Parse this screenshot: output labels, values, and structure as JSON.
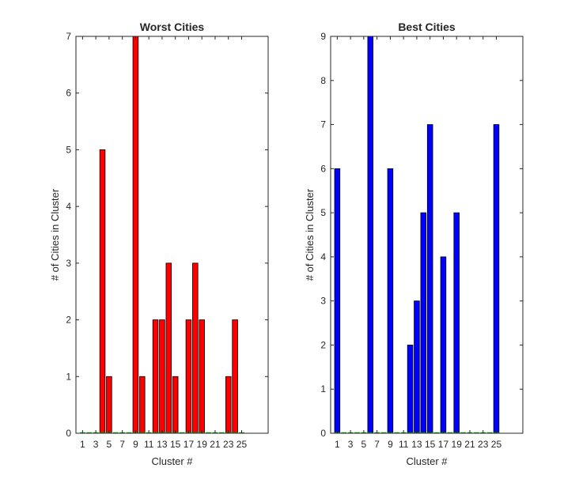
{
  "chart_data": [
    {
      "type": "bar",
      "title": "Worst Cities",
      "xlabel": "Cluster #",
      "ylabel": "# of Cities in Cluster",
      "xlim": [
        0,
        29
      ],
      "ylim": [
        0,
        7
      ],
      "x": [
        1,
        2,
        3,
        4,
        5,
        6,
        7,
        8,
        9,
        10,
        11,
        12,
        13,
        14,
        15,
        16,
        17,
        18,
        19,
        20,
        21,
        22,
        23,
        24,
        25
      ],
      "values": [
        0,
        0,
        0,
        5,
        1,
        0,
        0,
        0,
        7,
        1,
        0,
        2,
        2,
        3,
        1,
        0,
        2,
        3,
        2,
        0,
        0,
        0,
        1,
        2,
        0
      ],
      "xticks": [
        1,
        3,
        5,
        7,
        9,
        11,
        13,
        15,
        17,
        19,
        21,
        23,
        25
      ],
      "xtick_labels": [
        "1",
        "3",
        "5",
        "7",
        "9",
        "11",
        "13",
        "15",
        "17",
        "19",
        "21",
        "23",
        "25"
      ],
      "yticks": [
        0,
        1,
        2,
        3,
        4,
        5,
        6,
        7
      ],
      "ytick_labels": [
        "0",
        "1",
        "2",
        "3",
        "4",
        "5",
        "6",
        "7"
      ],
      "bar_color": "#ff0000",
      "edge_color": "#00aa00",
      "grid": false
    },
    {
      "type": "bar",
      "title": "Best Cities",
      "xlabel": "Cluster #",
      "ylabel": "# of Cities in Cluster",
      "xlim": [
        0,
        29
      ],
      "ylim": [
        0,
        9
      ],
      "x": [
        1,
        2,
        3,
        4,
        5,
        6,
        7,
        8,
        9,
        10,
        11,
        12,
        13,
        14,
        15,
        16,
        17,
        18,
        19,
        20,
        21,
        22,
        23,
        24,
        25
      ],
      "values": [
        6,
        0,
        0,
        0,
        0,
        9,
        0,
        0,
        6,
        0,
        0,
        2,
        3,
        5,
        7,
        0,
        4,
        0,
        5,
        0,
        0,
        0,
        0,
        0,
        7
      ],
      "xticks": [
        1,
        3,
        5,
        7,
        9,
        11,
        13,
        15,
        17,
        19,
        21,
        23,
        25
      ],
      "xtick_labels": [
        "1",
        "3",
        "5",
        "7",
        "9",
        "11",
        "13",
        "15",
        "17",
        "19",
        "21",
        "23",
        "25"
      ],
      "yticks": [
        0,
        1,
        2,
        3,
        4,
        5,
        6,
        7,
        8,
        9
      ],
      "ytick_labels": [
        "0",
        "1",
        "2",
        "3",
        "4",
        "5",
        "6",
        "7",
        "8",
        "9"
      ],
      "bar_color": "#0000ff",
      "edge_color": "#00aa00",
      "grid": false
    }
  ]
}
